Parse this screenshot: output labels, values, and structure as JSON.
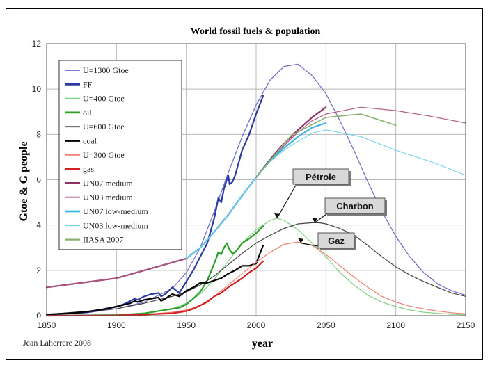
{
  "chart_data": {
    "type": "line",
    "title": "World fossil fuels & population",
    "xlabel": "year",
    "ylabel": "Gtoe & G people",
    "xlim": [
      1850,
      2150
    ],
    "ylim": [
      0,
      12
    ],
    "xticks": [
      1850,
      1900,
      1950,
      2000,
      2050,
      2100,
      2150
    ],
    "yticks": [
      0,
      2,
      4,
      6,
      8,
      10,
      12
    ],
    "grid": true,
    "legend_position": "top-left",
    "credit": "Jean Laherrere 2008",
    "annotations": [
      {
        "text": "Pétrole",
        "points_to": [
          2015,
          4.3
        ]
      },
      {
        "text": "Charbon",
        "points_to": [
          2042,
          4.1
        ]
      },
      {
        "text": "Gaz",
        "points_to": [
          2032,
          3.2
        ]
      }
    ],
    "series": [
      {
        "name": "U=1300 Gtoe",
        "color": "#6a6ac8",
        "width": 1.2,
        "x": [
          1850,
          1880,
          1900,
          1920,
          1940,
          1950,
          1960,
          1970,
          1980,
          1990,
          2000,
          2010,
          2020,
          2030,
          2040,
          2050,
          2060,
          2070,
          2080,
          2090,
          2100,
          2110,
          2120,
          2130,
          2140,
          2150
        ],
        "y": [
          0.05,
          0.15,
          0.3,
          0.6,
          1.2,
          1.9,
          3.0,
          4.6,
          6.3,
          7.9,
          9.3,
          10.4,
          11.0,
          11.1,
          10.6,
          9.8,
          8.6,
          7.3,
          5.9,
          4.6,
          3.5,
          2.6,
          1.9,
          1.4,
          1.1,
          0.9
        ]
      },
      {
        "name": "FF",
        "color": "#2b3aa0",
        "width": 2.2,
        "x": [
          1850,
          1870,
          1880,
          1890,
          1900,
          1905,
          1910,
          1913,
          1915,
          1920,
          1925,
          1930,
          1932,
          1935,
          1940,
          1945,
          1947,
          1950,
          1955,
          1960,
          1965,
          1970,
          1973,
          1975,
          1977,
          1980,
          1981,
          1983,
          1985,
          1990,
          1995,
          2000,
          2005
        ],
        "y": [
          0.05,
          0.1,
          0.15,
          0.25,
          0.4,
          0.5,
          0.65,
          0.75,
          0.7,
          0.85,
          0.95,
          1.0,
          0.85,
          0.95,
          1.25,
          1.0,
          1.2,
          1.5,
          2.0,
          2.6,
          3.2,
          4.3,
          5.2,
          5.0,
          5.6,
          6.2,
          5.8,
          5.9,
          6.2,
          7.3,
          8.0,
          8.9,
          9.7
        ]
      },
      {
        "name": "U=400 Gtoe",
        "color": "#7fd07f",
        "width": 1.2,
        "x": [
          1850,
          1900,
          1920,
          1940,
          1950,
          1960,
          1970,
          1980,
          1990,
          2000,
          2010,
          2015,
          2020,
          2030,
          2040,
          2050,
          2060,
          2070,
          2080,
          2090,
          2100,
          2110,
          2120,
          2130,
          2140,
          2150
        ],
        "y": [
          0.0,
          0.05,
          0.1,
          0.3,
          0.55,
          0.95,
          1.6,
          2.4,
          3.2,
          3.8,
          4.2,
          4.3,
          4.2,
          3.8,
          3.2,
          2.6,
          1.9,
          1.35,
          0.9,
          0.6,
          0.4,
          0.25,
          0.15,
          0.1,
          0.06,
          0.04
        ]
      },
      {
        "name": "oil",
        "color": "#2aa02a",
        "width": 2.2,
        "x": [
          1850,
          1900,
          1920,
          1940,
          1945,
          1950,
          1955,
          1960,
          1965,
          1970,
          1973,
          1975,
          1977,
          1979,
          1981,
          1983,
          1985,
          1990,
          1995,
          2000,
          2005
        ],
        "y": [
          0.0,
          0.02,
          0.1,
          0.3,
          0.35,
          0.5,
          0.75,
          1.05,
          1.55,
          2.3,
          2.8,
          2.7,
          3.0,
          3.2,
          2.9,
          2.75,
          2.8,
          3.2,
          3.4,
          3.65,
          3.95
        ]
      },
      {
        "name": "U=600 Gtoe",
        "color": "#444444",
        "width": 1.2,
        "x": [
          1850,
          1900,
          1920,
          1940,
          1950,
          1960,
          1970,
          1980,
          1990,
          2000,
          2010,
          2020,
          2030,
          2040,
          2045,
          2050,
          2060,
          2070,
          2080,
          2090,
          2100,
          2110,
          2120,
          2130,
          2140,
          2150
        ],
        "y": [
          0.05,
          0.3,
          0.55,
          0.85,
          1.05,
          1.35,
          1.75,
          2.25,
          2.75,
          3.2,
          3.55,
          3.85,
          4.05,
          4.1,
          4.1,
          4.05,
          3.85,
          3.55,
          3.1,
          2.6,
          2.15,
          1.8,
          1.5,
          1.25,
          1.0,
          0.85
        ]
      },
      {
        "name": "coal",
        "color": "#000000",
        "width": 2.2,
        "x": [
          1850,
          1870,
          1880,
          1890,
          1900,
          1910,
          1913,
          1915,
          1920,
          1925,
          1930,
          1932,
          1935,
          1940,
          1945,
          1950,
          1955,
          1960,
          1965,
          1970,
          1975,
          1980,
          1985,
          1990,
          1995,
          2000,
          2005
        ],
        "y": [
          0.05,
          0.12,
          0.18,
          0.28,
          0.4,
          0.55,
          0.65,
          0.6,
          0.7,
          0.75,
          0.8,
          0.65,
          0.75,
          0.95,
          0.85,
          1.1,
          1.25,
          1.45,
          1.45,
          1.55,
          1.65,
          1.85,
          2.0,
          2.2,
          2.2,
          2.3,
          3.1
        ]
      },
      {
        "name": "U=300 Gtoe",
        "color": "#ee8070",
        "width": 1.2,
        "x": [
          1850,
          1900,
          1920,
          1940,
          1950,
          1960,
          1970,
          1980,
          1990,
          2000,
          2010,
          2020,
          2030,
          2040,
          2050,
          2060,
          2070,
          2080,
          2090,
          2100,
          2110,
          2120,
          2130,
          2140,
          2150
        ],
        "y": [
          0.0,
          0.01,
          0.05,
          0.15,
          0.25,
          0.45,
          0.85,
          1.35,
          1.85,
          2.35,
          2.8,
          3.15,
          3.25,
          3.1,
          2.7,
          2.2,
          1.7,
          1.25,
          0.85,
          0.6,
          0.42,
          0.3,
          0.2,
          0.13,
          0.08
        ]
      },
      {
        "name": "gas",
        "color": "#d42020",
        "width": 2.2,
        "x": [
          1850,
          1900,
          1920,
          1940,
          1950,
          1955,
          1960,
          1965,
          1970,
          1975,
          1980,
          1985,
          1990,
          1995,
          2000,
          2005
        ],
        "y": [
          0.0,
          0.01,
          0.05,
          0.1,
          0.2,
          0.3,
          0.45,
          0.6,
          0.85,
          1.0,
          1.25,
          1.45,
          1.65,
          1.9,
          2.1,
          2.4
        ]
      },
      {
        "name": "UN07 medium",
        "color": "#8e2f66",
        "width": 2.2,
        "x": [
          1850,
          1900,
          1950,
          1960,
          1970,
          1980,
          1990,
          2000,
          2010,
          2020,
          2030,
          2040,
          2050
        ],
        "y": [
          1.25,
          1.65,
          2.52,
          3.0,
          3.7,
          4.45,
          5.3,
          6.1,
          6.9,
          7.6,
          8.2,
          8.75,
          9.2
        ]
      },
      {
        "name": "UN03 medium",
        "color": "#b45a86",
        "width": 1.2,
        "x": [
          1850,
          1900,
          1950,
          1960,
          1970,
          1980,
          1990,
          2000,
          2010,
          2020,
          2030,
          2040,
          2050,
          2075,
          2100,
          2125,
          2150
        ],
        "y": [
          1.25,
          1.65,
          2.52,
          3.0,
          3.7,
          4.45,
          5.3,
          6.1,
          6.8,
          7.5,
          8.1,
          8.6,
          8.9,
          9.2,
          9.05,
          8.8,
          8.5
        ]
      },
      {
        "name": "UN07 low-medium",
        "color": "#3fb6e8",
        "width": 2.2,
        "x": [
          1950,
          1960,
          1970,
          1980,
          1990,
          2000,
          2010,
          2020,
          2030,
          2040,
          2050
        ],
        "y": [
          2.52,
          3.0,
          3.7,
          4.45,
          5.3,
          6.1,
          6.85,
          7.4,
          7.9,
          8.3,
          8.5
        ]
      },
      {
        "name": "UN03 low-medium",
        "color": "#7ad3f0",
        "width": 1.2,
        "x": [
          1950,
          1960,
          1970,
          1980,
          1990,
          2000,
          2010,
          2020,
          2030,
          2040,
          2050,
          2075,
          2100,
          2125,
          2150
        ],
        "y": [
          2.52,
          3.0,
          3.7,
          4.45,
          5.3,
          6.1,
          6.8,
          7.3,
          7.7,
          8.05,
          8.2,
          7.9,
          7.3,
          6.8,
          6.2
        ]
      },
      {
        "name": "IIASA 2007",
        "color": "#88b070",
        "width": 1.6,
        "x": [
          2000,
          2025,
          2050,
          2075,
          2100
        ],
        "y": [
          6.1,
          7.95,
          8.75,
          8.9,
          8.4
        ]
      }
    ]
  }
}
